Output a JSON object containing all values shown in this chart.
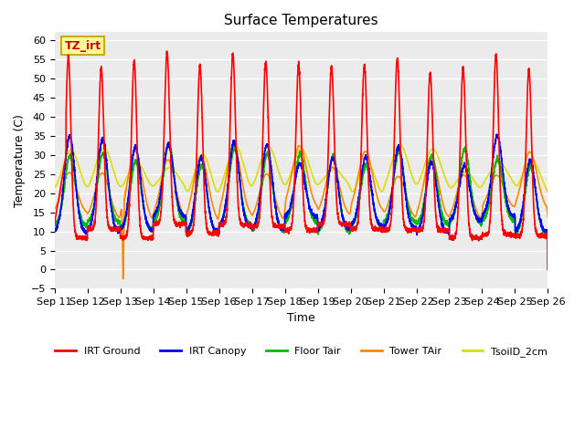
{
  "title": "Surface Temperatures",
  "xlabel": "Time",
  "ylabel": "Temperature (C)",
  "ylim": [
    -5,
    62
  ],
  "yticks": [
    -5,
    0,
    5,
    10,
    15,
    20,
    25,
    30,
    35,
    40,
    45,
    50,
    55,
    60
  ],
  "x_labels": [
    "Sep 11",
    "Sep 12",
    "Sep 13",
    "Sep 14",
    "Sep 15",
    "Sep 16",
    "Sep 17",
    "Sep 18",
    "Sep 19",
    "Sep 20",
    "Sep 21",
    "Sep 22",
    "Sep 23",
    "Sep 24",
    "Sep 25",
    "Sep 26"
  ],
  "annotation_text": "TZ_irt",
  "annotation_box_color": "#FFFF99",
  "annotation_box_edge": "#CCAA00",
  "annotation_text_color": "#CC0000",
  "series": {
    "IRT Ground": {
      "color": "#FF0000",
      "lw": 1.2
    },
    "IRT Canopy": {
      "color": "#0000FF",
      "lw": 1.2
    },
    "Floor Tair": {
      "color": "#00BB00",
      "lw": 1.2
    },
    "Tower TAir": {
      "color": "#FF8800",
      "lw": 1.2
    },
    "TsoilD_2cm": {
      "color": "#DDDD00",
      "lw": 1.2
    }
  },
  "background_color": "#FFFFFF",
  "plot_bg_color": "#EBEBEB",
  "grid_color": "#FFFFFF"
}
